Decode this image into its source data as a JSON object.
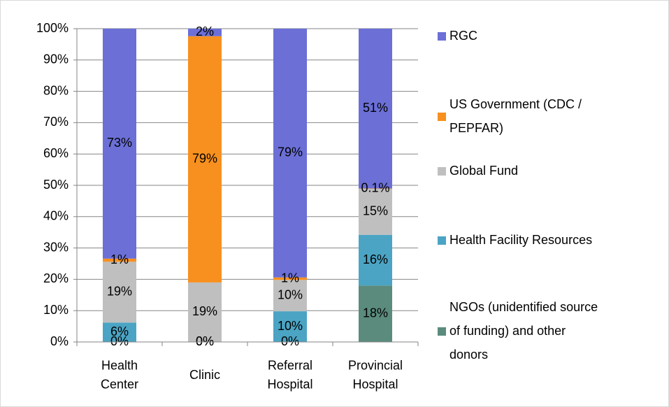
{
  "chart_data": {
    "type": "stacked_bar_100",
    "categories": [
      "Health Center",
      "Clinic",
      "Referral Hospital",
      "Provincial Hospital"
    ],
    "series": [
      {
        "name": "NGOs (unidentified source of funding) and other donors",
        "color": "#5b8b7d",
        "values": [
          0,
          0,
          0,
          18
        ],
        "value_labels": [
          "0%",
          "0%",
          "0%",
          "18%"
        ]
      },
      {
        "name": "Health Facility Resources",
        "color": "#4ba4c4",
        "values": [
          6.2,
          0,
          9.8,
          16.2
        ],
        "value_labels": [
          "6%",
          "0%",
          "10%",
          "16%"
        ]
      },
      {
        "name": "Global Fund",
        "color": "#bfbfbf",
        "values": [
          19.4,
          19,
          10,
          14.7
        ],
        "value_labels": [
          "19%",
          "19%",
          "10%",
          "15%"
        ]
      },
      {
        "name": "US Government (CDC / PEPFAR)",
        "color": "#f7901e",
        "values": [
          1,
          78.6,
          0.8,
          0.1
        ],
        "value_labels": [
          "1%",
          "79%",
          "1%",
          "0.1%"
        ]
      },
      {
        "name": "RGC",
        "color": "#6b6fd6",
        "values": [
          73.4,
          2.4,
          79.4,
          51
        ],
        "value_labels": [
          "73%",
          "2%",
          "79%",
          "51%"
        ]
      }
    ],
    "ylim": [
      0,
      100
    ],
    "yticks": [
      {
        "value": 0,
        "label": "0%"
      },
      {
        "value": 10,
        "label": "10%"
      },
      {
        "value": 20,
        "label": "20%"
      },
      {
        "value": 30,
        "label": "30%"
      },
      {
        "value": 40,
        "label": "40%"
      },
      {
        "value": 50,
        "label": "50%"
      },
      {
        "value": 60,
        "label": "60%"
      },
      {
        "value": 70,
        "label": "70%"
      },
      {
        "value": 80,
        "label": "80%"
      },
      {
        "value": 90,
        "label": "90%"
      },
      {
        "value": 100,
        "label": "100%"
      }
    ],
    "grid": true,
    "legend": "right"
  }
}
